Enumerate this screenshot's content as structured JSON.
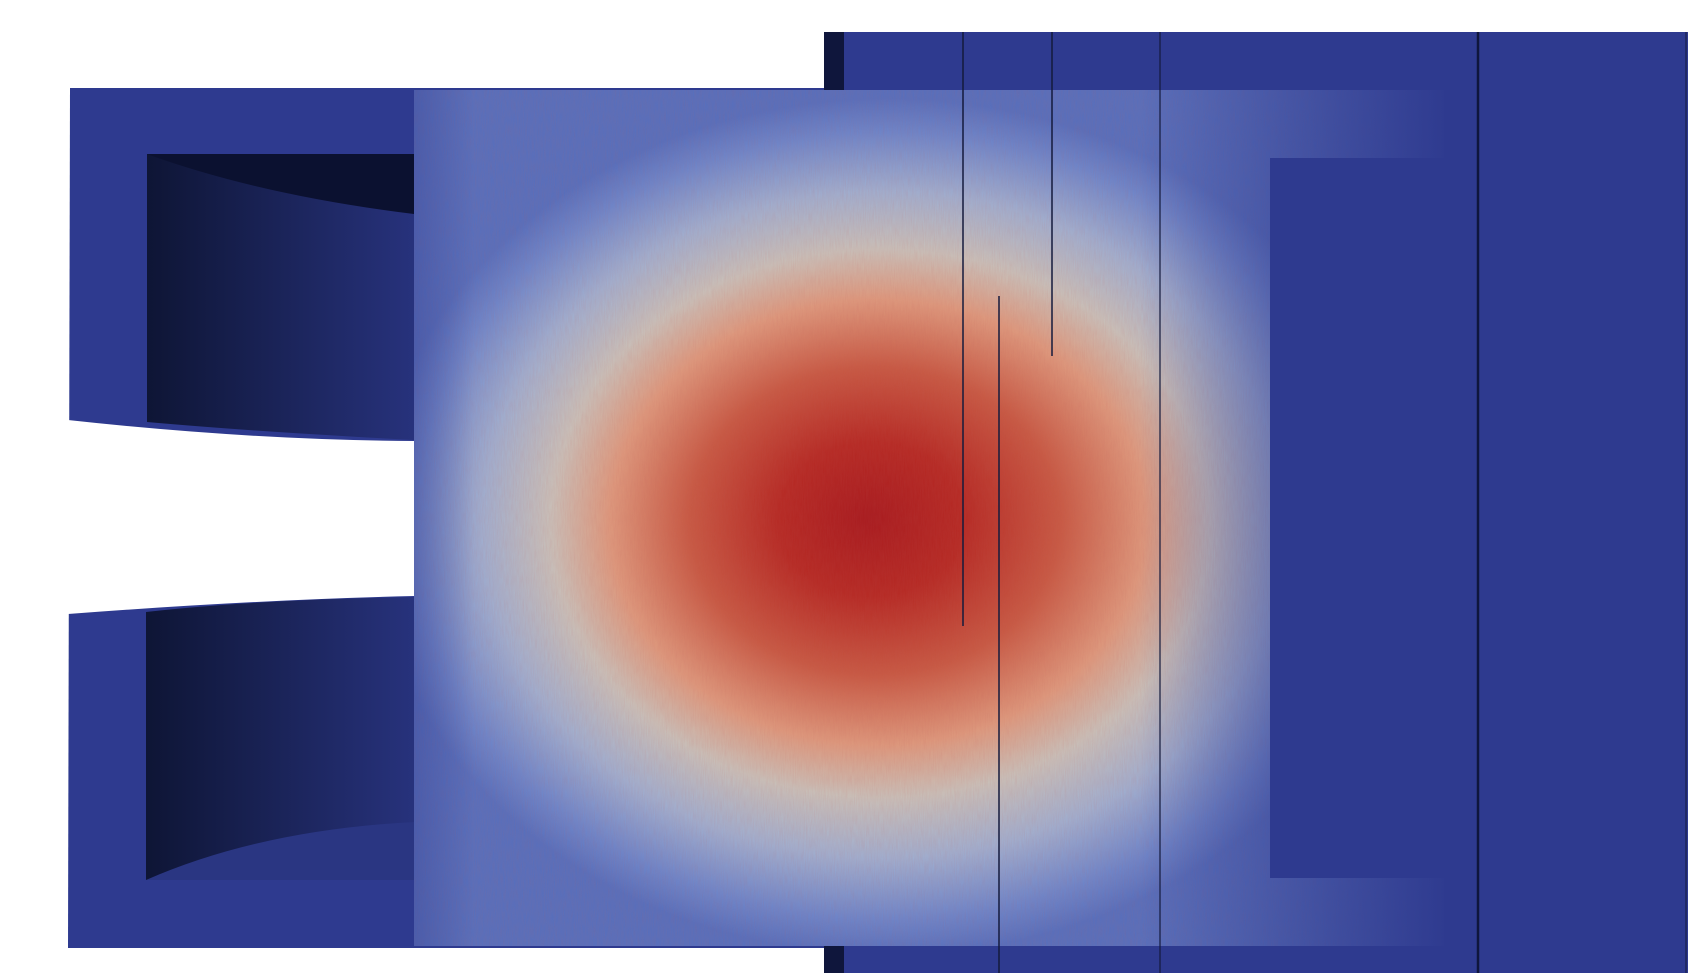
{
  "scene": {
    "kind": "3d-render",
    "colormap": "cool-to-warm",
    "colors": {
      "background": "#ffffff",
      "body_blue": "#2e3a8f",
      "shadow_dark": "#0f163c",
      "cool_light": "#6e8ad0",
      "neutral": "#c9c2bb",
      "warm_mid": "#d4745a",
      "hot_core": "#a81a1e",
      "edge_line": "#141a3c"
    }
  }
}
